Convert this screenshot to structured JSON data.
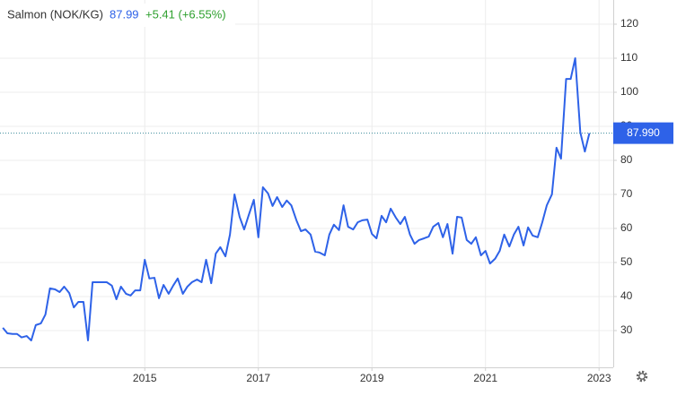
{
  "chart_data": {
    "type": "line",
    "title": "Salmon (NOK/KG)",
    "price": "87.99",
    "change": "+5.41 (+6.55%)",
    "color": "#2e62e8",
    "grid": true,
    "x": [
      2012.5,
      2012.58,
      2012.67,
      2012.75,
      2012.83,
      2012.92,
      2013.0,
      2013.08,
      2013.17,
      2013.25,
      2013.33,
      2013.42,
      2013.5,
      2013.58,
      2013.67,
      2013.75,
      2013.83,
      2013.92,
      2014.0,
      2014.08,
      2014.17,
      2014.25,
      2014.33,
      2014.42,
      2014.5,
      2014.58,
      2014.67,
      2014.75,
      2014.83,
      2014.92,
      2015.0,
      2015.08,
      2015.17,
      2015.25,
      2015.33,
      2015.42,
      2015.5,
      2015.58,
      2015.67,
      2015.75,
      2015.83,
      2015.92,
      2016.0,
      2016.08,
      2016.17,
      2016.25,
      2016.33,
      2016.42,
      2016.5,
      2016.58,
      2016.67,
      2016.75,
      2016.83,
      2016.92,
      2017.0,
      2017.08,
      2017.17,
      2017.25,
      2017.33,
      2017.42,
      2017.5,
      2017.58,
      2017.67,
      2017.75,
      2017.83,
      2017.92,
      2018.0,
      2018.08,
      2018.17,
      2018.25,
      2018.33,
      2018.42,
      2018.5,
      2018.58,
      2018.67,
      2018.75,
      2018.83,
      2018.92,
      2019.0,
      2019.08,
      2019.17,
      2019.25,
      2019.33,
      2019.42,
      2019.5,
      2019.58,
      2019.67,
      2019.75,
      2019.83,
      2019.92,
      2020.0,
      2020.08,
      2020.17,
      2020.25,
      2020.33,
      2020.42,
      2020.5,
      2020.58,
      2020.67,
      2020.75,
      2020.83,
      2020.92,
      2021.0,
      2021.08,
      2021.17,
      2021.25,
      2021.33,
      2021.42,
      2021.5,
      2021.58,
      2021.67,
      2021.75,
      2021.83,
      2021.92,
      2022.0,
      2022.08,
      2022.17,
      2022.25,
      2022.33,
      2022.42,
      2022.5,
      2022.58,
      2022.67,
      2022.75,
      2022.83
    ],
    "values": [
      30.8,
      29.2,
      29,
      29,
      28,
      28.4,
      27.1,
      31.6,
      32.1,
      34.7,
      42.4,
      42.1,
      41.3,
      42.9,
      41,
      36.8,
      38.4,
      38.4,
      27.1,
      44.2,
      44.2,
      44.2,
      44.2,
      43.2,
      39.2,
      42.9,
      40.8,
      40.3,
      41.8,
      41.8,
      50.8,
      45.3,
      45.5,
      39.5,
      43.4,
      40.8,
      43.2,
      45.3,
      40.8,
      42.9,
      44.2,
      45,
      44.2,
      50.8,
      43.9,
      52.6,
      54.5,
      51.8,
      58.2,
      70,
      63.4,
      59.7,
      63.9,
      68.4,
      57.4,
      72.1,
      70.3,
      66.6,
      69.2,
      66.3,
      68.2,
      66.8,
      62.4,
      59.2,
      59.7,
      58.2,
      53.2,
      52.9,
      52.1,
      58.2,
      61.1,
      59.5,
      66.8,
      60.5,
      59.7,
      61.8,
      62.4,
      62.6,
      58.4,
      57.1,
      63.7,
      61.8,
      65.8,
      63.2,
      61.3,
      63.4,
      58.2,
      55.5,
      56.6,
      57.1,
      57.6,
      60.5,
      61.6,
      57.4,
      61.3,
      52.6,
      63.4,
      63.2,
      56.6,
      55.5,
      57.4,
      52.1,
      53.4,
      49.7,
      51.1,
      53.4,
      58.2,
      54.7,
      58.2,
      60.5,
      55,
      60.3,
      57.9,
      57.4,
      61.8,
      66.8,
      70,
      83.7,
      80.5,
      103.9,
      103.9,
      110,
      88.2,
      82.6,
      87.99
    ],
    "xlim": [
      2012.45,
      2023.25
    ],
    "xticks": [
      2015,
      2017,
      2019,
      2021,
      2023
    ],
    "ylim": [
      19.2,
      127.1
    ],
    "yticks": [
      30,
      40,
      50,
      60,
      70,
      80,
      90,
      100,
      110,
      120
    ],
    "last_tag": {
      "value": 87.99,
      "label": "87.990"
    }
  }
}
